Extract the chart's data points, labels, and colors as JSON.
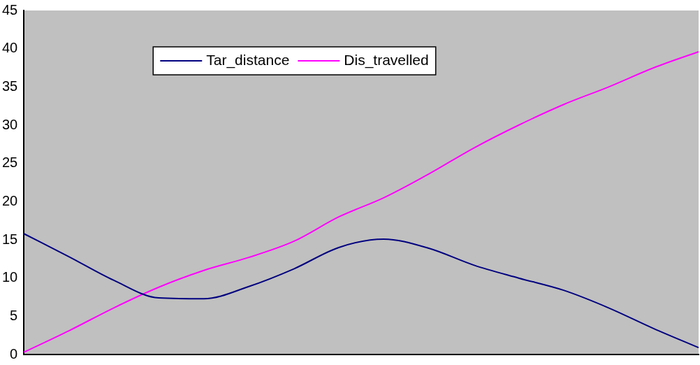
{
  "chart_data": {
    "type": "line",
    "categories": [
      null,
      null,
      null,
      null,
      null,
      null,
      null,
      null,
      null,
      null,
      null,
      null,
      null,
      null,
      null,
      null
    ],
    "series": [
      {
        "name": "Tar_distance",
        "color": "#000080",
        "values": [
          15.8,
          12.8,
          9.7,
          7.4,
          7.3,
          8.9,
          11.2,
          14.0,
          15.1,
          13.9,
          11.7,
          10.0,
          8.4,
          6.1,
          3.4,
          0.9
        ]
      },
      {
        "name": "Dis_travelled",
        "color": "#ff00ff",
        "values": [
          0.3,
          3.1,
          6.1,
          8.8,
          11.0,
          12.7,
          14.8,
          18.0,
          20.5,
          23.6,
          27.0,
          30.0,
          32.7,
          35.0,
          37.5,
          39.6
        ]
      }
    ],
    "ylim": [
      0,
      45
    ],
    "yticks": [
      0,
      5,
      10,
      15,
      20,
      25,
      30,
      35,
      40,
      45
    ],
    "grid": false,
    "legend": "top",
    "marker": "none",
    "line_style": "solid",
    "tick_labels": "y"
  }
}
